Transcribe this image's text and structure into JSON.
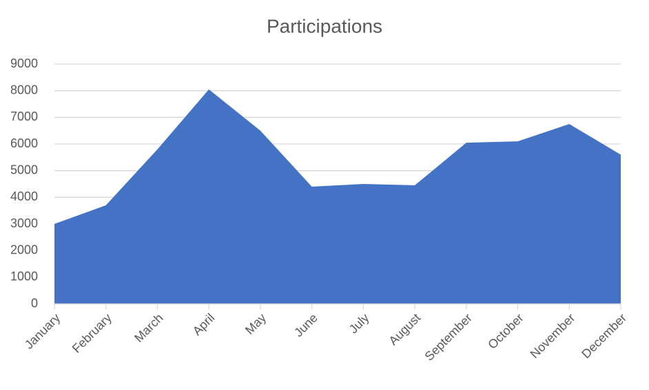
{
  "chart_data": {
    "type": "area",
    "title": "Participations",
    "categories": [
      "January",
      "February",
      "March",
      "April",
      "May",
      "June",
      "July",
      "August",
      "September",
      "October",
      "November",
      "December"
    ],
    "values": [
      3000,
      3700,
      5800,
      8050,
      6500,
      4400,
      4500,
      4450,
      6050,
      6100,
      6750,
      5600
    ],
    "color": "#4472c4",
    "ylim": [
      0,
      9000
    ],
    "yticks": [
      0,
      1000,
      2000,
      3000,
      4000,
      5000,
      6000,
      7000,
      8000,
      9000
    ],
    "grid": true
  }
}
